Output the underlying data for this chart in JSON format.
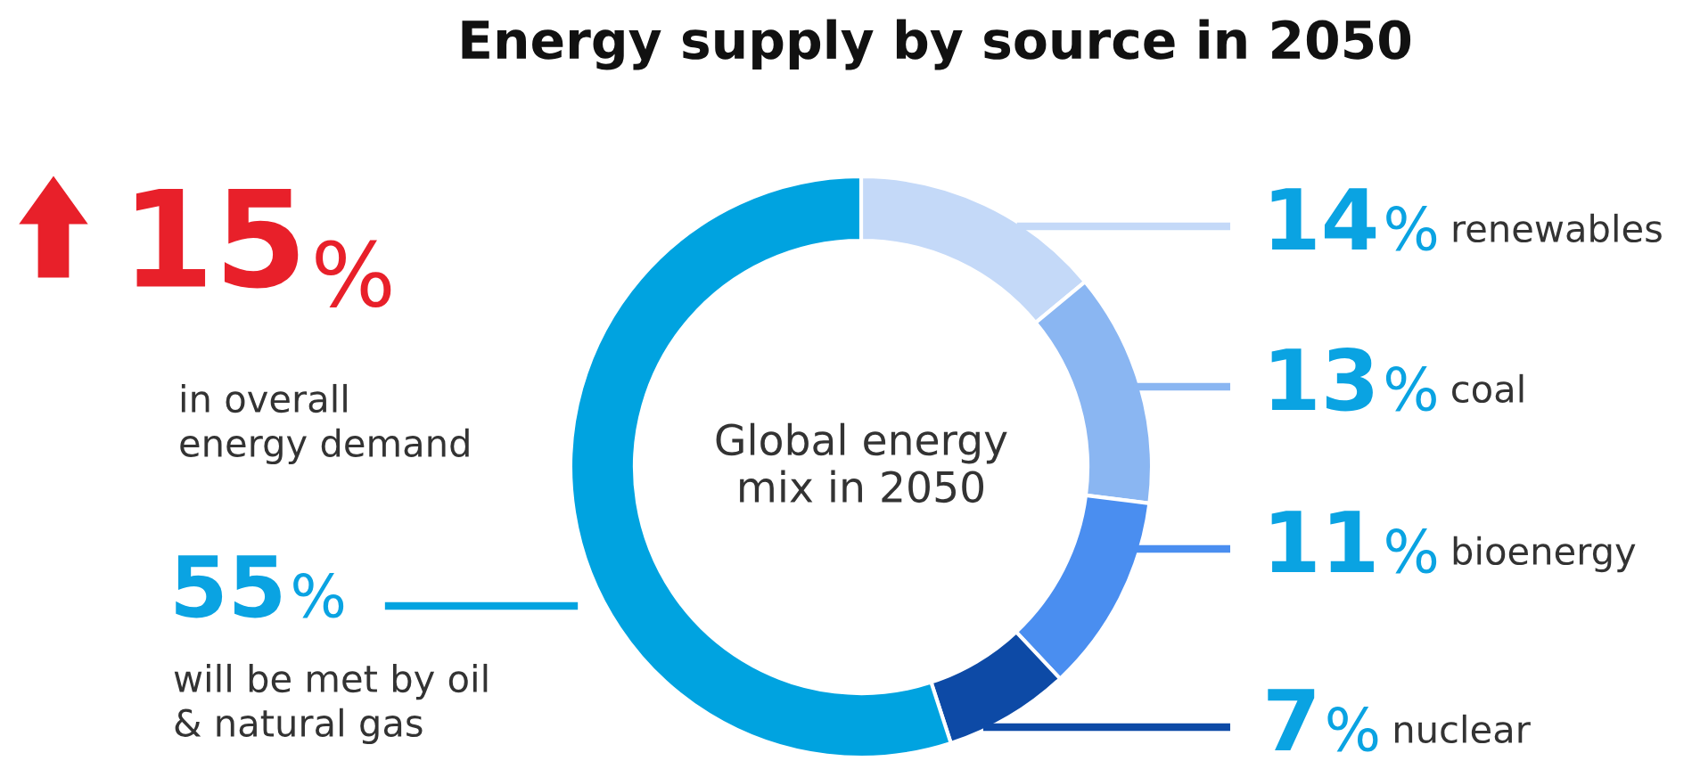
{
  "chart_data": {
    "type": "donut",
    "title": "Energy supply by source in 2050",
    "categories": [
      "renewables",
      "coal",
      "bioenergy",
      "nuclear",
      "will be met by oil\n& natural gas"
    ],
    "values": [
      14,
      13,
      11,
      7,
      55
    ],
    "colors": [
      "#c4d9f8",
      "#8ab6f2",
      "#4a8ef0",
      "#0d4aa6",
      "#00a3e0"
    ],
    "value_labels": [
      "14%",
      "13%",
      "11%",
      "7%",
      "55%"
    ],
    "annotations": [
      "15%",
      "in overall\nenergy demand",
      "Global energy\nmix in 2050"
    ]
  }
}
